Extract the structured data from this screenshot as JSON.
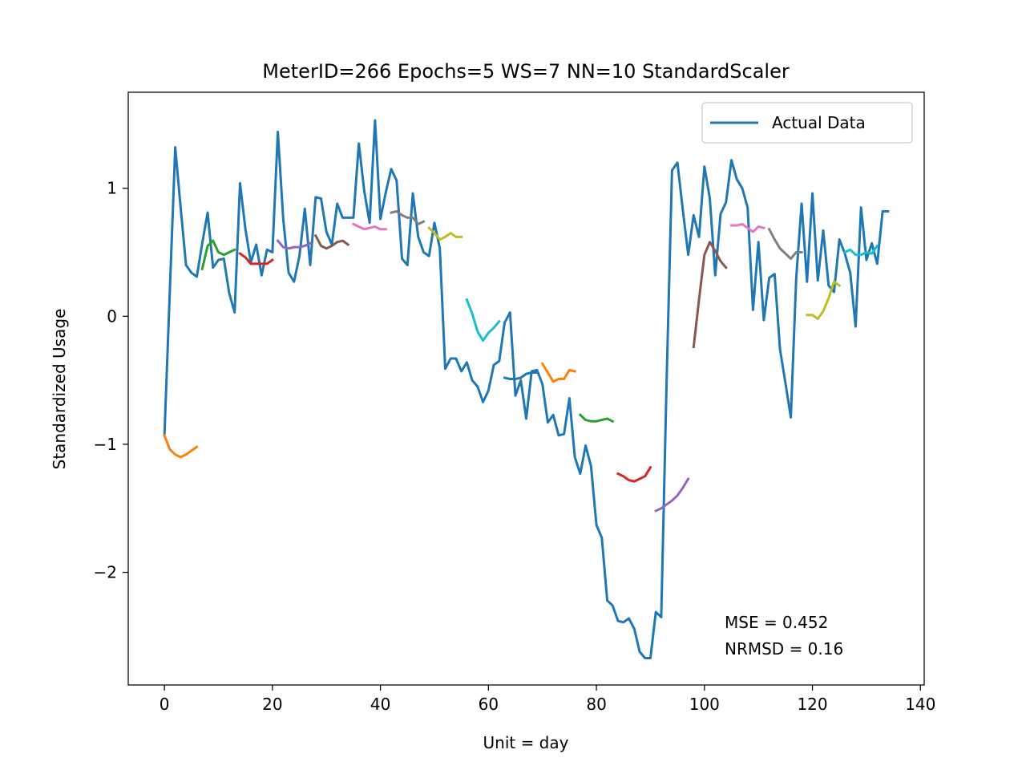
{
  "chart_data": {
    "type": "line",
    "title": "MeterID=266 Epochs=5 WS=7 NN=10 StandardScaler",
    "xlabel": "Unit = day",
    "ylabel": "Standardized Usage",
    "xlim": [
      -6.7,
      140.7
    ],
    "ylim": [
      -2.88,
      1.75
    ],
    "xticks": [
      0,
      20,
      40,
      60,
      80,
      100,
      120,
      140
    ],
    "xtick_labels": [
      "0",
      "20",
      "40",
      "60",
      "80",
      "100",
      "120",
      "140"
    ],
    "yticks": [
      -2,
      -1,
      0,
      1
    ],
    "ytick_labels": [
      "−2",
      "−1",
      "0",
      "1"
    ],
    "grid": false,
    "legend": {
      "position": "top-right",
      "entries": [
        "Actual Data"
      ]
    },
    "annotations": [
      "MSE = 0.452",
      "NRMSD = 0.16"
    ],
    "actual": {
      "name": "Actual Data",
      "color": "#1f77b4",
      "x": [
        0,
        1,
        2,
        3,
        4,
        5,
        6,
        7,
        8,
        9,
        10,
        11,
        12,
        13,
        14,
        15,
        16,
        17,
        18,
        19,
        20,
        21,
        22,
        23,
        24,
        25,
        26,
        27,
        28,
        29,
        30,
        31,
        32,
        33,
        34,
        35,
        36,
        37,
        38,
        39,
        40,
        41,
        42,
        43,
        44,
        45,
        46,
        47,
        48,
        49,
        50,
        51,
        52,
        53,
        54,
        55,
        56,
        57,
        58,
        59,
        60,
        61,
        62,
        63,
        64,
        65,
        66,
        67,
        68,
        69,
        70,
        71,
        72,
        73,
        74,
        75,
        76,
        77,
        78,
        79,
        80,
        81,
        82,
        83,
        84,
        85,
        86,
        87,
        88,
        89,
        90,
        91,
        92,
        93,
        94,
        95,
        96,
        97,
        98,
        99,
        100,
        101,
        102,
        103,
        104,
        105,
        106,
        107,
        108,
        109,
        110,
        111,
        112,
        113,
        114,
        115,
        116,
        117,
        118,
        119,
        120,
        121,
        122,
        123,
        124,
        125,
        126,
        127,
        128,
        129,
        130,
        131,
        132,
        133,
        134
      ],
      "y": [
        -0.93,
        0.2,
        1.32,
        0.85,
        0.4,
        0.34,
        0.31,
        0.57,
        0.81,
        0.38,
        0.44,
        0.45,
        0.18,
        0.03,
        1.04,
        0.68,
        0.42,
        0.56,
        0.32,
        0.52,
        0.5,
        1.44,
        0.76,
        0.34,
        0.27,
        0.47,
        0.84,
        0.4,
        0.93,
        0.92,
        0.66,
        0.56,
        0.88,
        0.77,
        0.77,
        0.77,
        1.35,
        0.98,
        0.73,
        1.53,
        0.76,
        0.97,
        1.15,
        1.06,
        0.45,
        0.4,
        0.96,
        0.62,
        0.5,
        0.47,
        0.73,
        0.53,
        -0.41,
        -0.33,
        -0.33,
        -0.43,
        -0.36,
        -0.5,
        -0.55,
        -0.67,
        -0.58,
        -0.38,
        -0.35,
        -0.05,
        0.03,
        -0.62,
        -0.5,
        -0.8,
        -0.43,
        -0.42,
        -0.53,
        -0.83,
        -0.77,
        -0.93,
        -0.92,
        -0.64,
        -1.1,
        -1.23,
        -1.01,
        -1.17,
        -1.63,
        -1.73,
        -2.22,
        -2.26,
        -2.38,
        -2.39,
        -2.36,
        -2.44,
        -2.62,
        -2.67,
        -2.67,
        -2.31,
        -2.35,
        -0.5,
        1.14,
        1.2,
        0.83,
        0.48,
        0.79,
        0.62,
        1.17,
        0.92,
        0.32,
        0.8,
        0.89,
        1.22,
        1.07,
        1.0,
        0.85,
        0.05,
        0.58,
        -0.03,
        0.3,
        0.33,
        -0.26,
        -0.52,
        -0.79,
        0.3,
        0.88,
        0.27,
        0.96,
        0.28,
        0.67,
        0.24,
        0.19,
        0.6,
        0.49,
        0.34,
        -0.08,
        0.85,
        0.44,
        0.57,
        0.41,
        0.82,
        0.82
      ]
    },
    "predictions": [
      {
        "x": [
          0,
          1,
          2,
          3,
          4,
          5,
          6
        ],
        "y": [
          -0.93,
          -1.04,
          -1.08,
          -1.1,
          -1.08,
          -1.05,
          -1.02
        ],
        "color": "#ff7f0e"
      },
      {
        "x": [
          7,
          8,
          9,
          10,
          11,
          12,
          13
        ],
        "y": [
          0.37,
          0.55,
          0.59,
          0.5,
          0.48,
          0.5,
          0.52
        ],
        "color": "#2ca02c"
      },
      {
        "x": [
          14,
          15,
          16,
          17,
          18,
          19,
          20
        ],
        "y": [
          0.49,
          0.46,
          0.41,
          0.41,
          0.41,
          0.41,
          0.44
        ],
        "color": "#d62728"
      },
      {
        "x": [
          21,
          22,
          23,
          24,
          25,
          26,
          27
        ],
        "y": [
          0.59,
          0.54,
          0.53,
          0.54,
          0.54,
          0.55,
          0.57
        ],
        "color": "#9467bd"
      },
      {
        "x": [
          28,
          29,
          30,
          31,
          32,
          33,
          34
        ],
        "y": [
          0.63,
          0.55,
          0.53,
          0.55,
          0.58,
          0.59,
          0.56
        ],
        "color": "#8c564b"
      },
      {
        "x": [
          35,
          36,
          37,
          38,
          39,
          40,
          41
        ],
        "y": [
          0.72,
          0.7,
          0.68,
          0.69,
          0.7,
          0.68,
          0.68
        ],
        "color": "#e377c2"
      },
      {
        "x": [
          42,
          43,
          44,
          45,
          46,
          47,
          48
        ],
        "y": [
          0.81,
          0.82,
          0.79,
          0.77,
          0.77,
          0.72,
          0.74
        ],
        "color": "#7f7f7f"
      },
      {
        "x": [
          49,
          50,
          51,
          52,
          53,
          54,
          55
        ],
        "y": [
          0.69,
          0.65,
          0.6,
          0.62,
          0.65,
          0.62,
          0.62
        ],
        "color": "#bcbd22"
      },
      {
        "x": [
          56,
          57,
          58,
          59,
          60,
          61,
          62
        ],
        "y": [
          0.13,
          0.02,
          -0.12,
          -0.19,
          -0.13,
          -0.09,
          -0.04
        ],
        "color": "#17becf"
      },
      {
        "x": [
          63,
          64,
          65,
          66,
          67,
          68,
          69
        ],
        "y": [
          -0.48,
          -0.49,
          -0.49,
          -0.48,
          -0.45,
          -0.44,
          -0.44
        ],
        "color": "#1f77b4"
      },
      {
        "x": [
          70,
          71,
          72,
          73,
          74,
          75,
          76
        ],
        "y": [
          -0.37,
          -0.44,
          -0.51,
          -0.49,
          -0.49,
          -0.42,
          -0.43
        ],
        "color": "#ff7f0e"
      },
      {
        "x": [
          77,
          78,
          79,
          80,
          81,
          82,
          83
        ],
        "y": [
          -0.77,
          -0.81,
          -0.82,
          -0.82,
          -0.81,
          -0.8,
          -0.82
        ],
        "color": "#2ca02c"
      },
      {
        "x": [
          84,
          85,
          86,
          87,
          88,
          89,
          90
        ],
        "y": [
          -1.23,
          -1.25,
          -1.28,
          -1.29,
          -1.27,
          -1.25,
          -1.18
        ],
        "color": "#d62728"
      },
      {
        "x": [
          91,
          92,
          93,
          94,
          95,
          96,
          97
        ],
        "y": [
          -1.52,
          -1.5,
          -1.47,
          -1.44,
          -1.4,
          -1.34,
          -1.27
        ],
        "color": "#9467bd"
      },
      {
        "x": [
          98,
          99,
          100,
          101,
          102,
          103,
          104
        ],
        "y": [
          -0.24,
          0.13,
          0.48,
          0.58,
          0.51,
          0.43,
          0.38
        ],
        "color": "#8c564b"
      },
      {
        "x": [
          105,
          106,
          107,
          108,
          109,
          110,
          111
        ],
        "y": [
          0.71,
          0.71,
          0.72,
          0.69,
          0.66,
          0.7,
          0.69
        ],
        "color": "#e377c2"
      },
      {
        "x": [
          112,
          113,
          114,
          115,
          116,
          117,
          118
        ],
        "y": [
          0.68,
          0.6,
          0.53,
          0.49,
          0.45,
          0.5,
          0.5
        ],
        "color": "#7f7f7f"
      },
      {
        "x": [
          119,
          120,
          121,
          122,
          123,
          124,
          125
        ],
        "y": [
          0.01,
          0.01,
          -0.02,
          0.04,
          0.14,
          0.27,
          0.24
        ],
        "color": "#bcbd22"
      },
      {
        "x": [
          126,
          127,
          128,
          129,
          130,
          131,
          132
        ],
        "y": [
          0.5,
          0.52,
          0.48,
          0.48,
          0.5,
          0.49,
          0.55
        ],
        "color": "#17becf"
      }
    ]
  }
}
